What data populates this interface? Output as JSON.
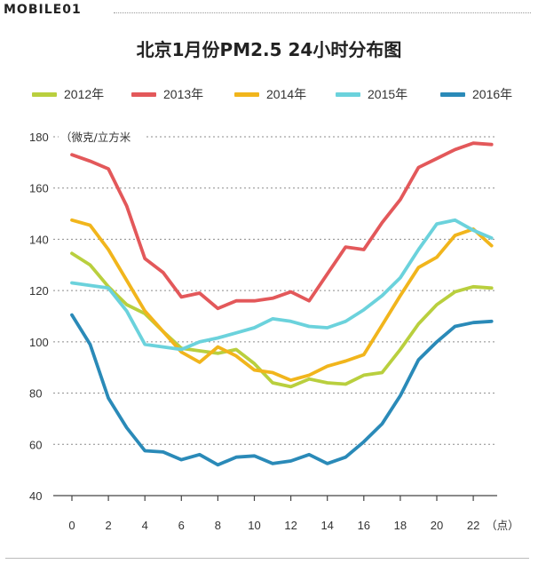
{
  "header": {
    "logo_text": "MOBILE01",
    "title": "北京1月份PM2.5 24小时分布图"
  },
  "colors": {
    "2012年": "#b9cf3e",
    "2013年": "#e3585a",
    "2014年": "#f1b51c",
    "2015年": "#6bd2dc",
    "2016年": "#2a8ab8",
    "grid": "#8c8c8c",
    "axis": "#444444",
    "text": "#333333"
  },
  "chart_data": {
    "type": "line",
    "title": "北京1月份PM2.5 24小时分布图",
    "ylabel": "（微克/立方米",
    "xunit": "（点）",
    "xlim": [
      0,
      23
    ],
    "ylim": [
      40,
      180
    ],
    "xticks": [
      0,
      2,
      4,
      6,
      8,
      10,
      12,
      14,
      16,
      18,
      20,
      22
    ],
    "yticks": [
      40,
      60,
      80,
      100,
      120,
      140,
      160,
      180
    ],
    "grid": "horizontal dotted",
    "legend_position": "top",
    "x": [
      0,
      1,
      2,
      3,
      4,
      5,
      6,
      7,
      8,
      9,
      10,
      11,
      12,
      13,
      14,
      15,
      16,
      17,
      18,
      19,
      20,
      21,
      22,
      23
    ],
    "series": [
      {
        "name": "2012年",
        "values": [
          134.5,
          130,
          121.5,
          114.5,
          111,
          104,
          97.5,
          96.5,
          95.5,
          97,
          91.5,
          84,
          82.5,
          85.5,
          84,
          83.5,
          87,
          88,
          97,
          107,
          114.5,
          119.5,
          121.5,
          121
        ]
      },
      {
        "name": "2013年",
        "values": [
          173,
          170.5,
          167.5,
          153,
          132.5,
          127,
          117.5,
          119,
          113,
          116,
          116,
          117,
          119.5,
          116,
          126.5,
          137,
          136,
          146.5,
          155.5,
          168,
          171.5,
          175,
          177.5,
          177
        ]
      },
      {
        "name": "2014年",
        "values": [
          147.5,
          145.5,
          136,
          124,
          112,
          104,
          96,
          92,
          98,
          94.5,
          89,
          88,
          85,
          87,
          90.5,
          92.5,
          95,
          106.5,
          118,
          129,
          133,
          141.5,
          144,
          137.5
        ]
      },
      {
        "name": "2015年",
        "values": [
          123,
          122,
          121,
          112,
          99,
          98,
          97,
          100,
          101.5,
          103.5,
          105.5,
          109,
          108,
          106,
          105.5,
          108,
          112.5,
          118,
          125,
          136,
          146,
          147.5,
          143.5,
          140.5
        ]
      },
      {
        "name": "2016年",
        "values": [
          110.5,
          99,
          78,
          66.5,
          57.5,
          57,
          54,
          56,
          52,
          55,
          55.5,
          52.5,
          53.5,
          56,
          52.5,
          55,
          61,
          68,
          79,
          93,
          100,
          106,
          107.5,
          108
        ]
      }
    ]
  }
}
